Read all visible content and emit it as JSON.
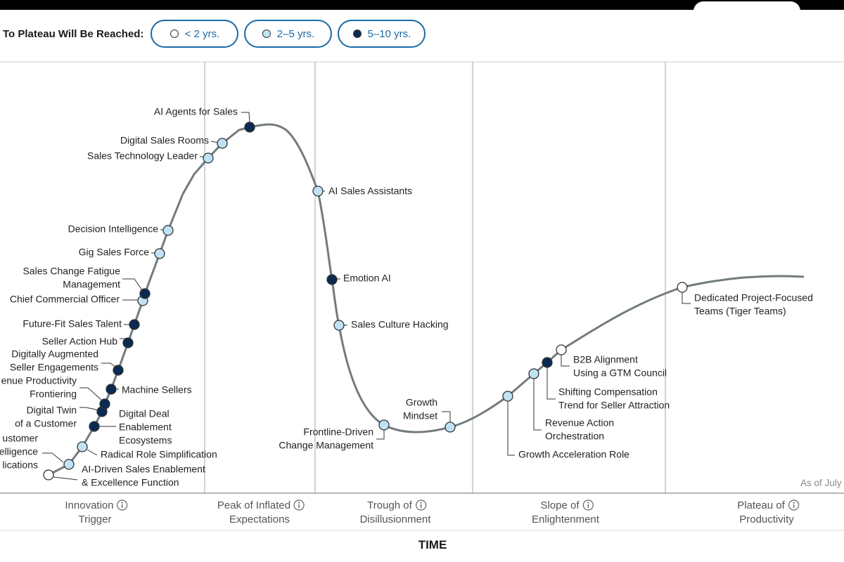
{
  "legend": {
    "title": "To Plateau Will Be Reached:",
    "items": [
      {
        "label": "< 2 yrs.",
        "color": "#ffffff"
      },
      {
        "label": "2–5 yrs.",
        "color": "#bfe3f5"
      },
      {
        "label": "5–10 yrs.",
        "color": "#0b2a52"
      }
    ]
  },
  "chart_data": {
    "type": "line",
    "xlabel": "TIME",
    "as_of": "As of July",
    "phases": [
      {
        "line1": "Innovation",
        "line2": "Trigger"
      },
      {
        "line1": "Peak of Inflated",
        "line2": "Expectations"
      },
      {
        "line1": "Trough of",
        "line2": "Disillusionment"
      },
      {
        "line1": "Slope of",
        "line2": "Enlightenment"
      },
      {
        "line1": "Plateau of",
        "line2": "Productivity"
      }
    ],
    "series": [
      {
        "name": "< 2 yrs.",
        "color": "#ffffff"
      },
      {
        "name": "2–5 yrs.",
        "color": "#bfe3f5"
      },
      {
        "name": "5–10 yrs.",
        "color": "#0b2a52"
      }
    ],
    "points": [
      {
        "lines": [
          "AI-Driven Sales Enablement",
          "& Excellence Function"
        ],
        "category": 0
      },
      {
        "lines": [
          "ustomer",
          "elligence",
          "lications"
        ],
        "category": 1
      },
      {
        "lines": [
          "Radical Role Simplification"
        ],
        "category": 1
      },
      {
        "lines": [
          "Digital Deal",
          "Enablement",
          "Ecosystems"
        ],
        "category": 2
      },
      {
        "lines": [
          "Digital Twin",
          "of a Customer"
        ],
        "category": 2
      },
      {
        "lines": [
          "enue Productivity",
          "Frontiering"
        ],
        "category": 2
      },
      {
        "lines": [
          "Machine Sellers"
        ],
        "category": 2
      },
      {
        "lines": [
          "Digitally Augmented",
          "Seller Engagements"
        ],
        "category": 2
      },
      {
        "lines": [
          "Seller Action Hub"
        ],
        "category": 2
      },
      {
        "lines": [
          "Future-Fit Sales Talent"
        ],
        "category": 2
      },
      {
        "lines": [
          "Chief Commercial Officer"
        ],
        "category": 1
      },
      {
        "lines": [
          "Sales Change Fatigue",
          "Management"
        ],
        "category": 2
      },
      {
        "lines": [
          "Gig Sales Force"
        ],
        "category": 1
      },
      {
        "lines": [
          "Decision Intelligence"
        ],
        "category": 1
      },
      {
        "lines": [
          "Sales Technology Leader"
        ],
        "category": 1
      },
      {
        "lines": [
          "Digital Sales Rooms"
        ],
        "category": 1
      },
      {
        "lines": [
          "AI Agents for Sales"
        ],
        "category": 2
      },
      {
        "lines": [
          "AI Sales Assistants"
        ],
        "category": 1
      },
      {
        "lines": [
          "Emotion AI"
        ],
        "category": 2
      },
      {
        "lines": [
          "Sales Culture Hacking"
        ],
        "category": 1
      },
      {
        "lines": [
          "Frontline-Driven",
          "Change Management"
        ],
        "category": 1
      },
      {
        "lines": [
          "Growth",
          "Mindset"
        ],
        "category": 1
      },
      {
        "lines": [
          "Growth Acceleration Role"
        ],
        "category": 1
      },
      {
        "lines": [
          "Revenue Action",
          "Orchestration"
        ],
        "category": 1
      },
      {
        "lines": [
          "Shifting Compensation",
          "Trend for Seller Attraction"
        ],
        "category": 2
      },
      {
        "lines": [
          "B2B Alignment",
          "Using a GTM Council"
        ],
        "category": 0
      },
      {
        "lines": [
          "Dedicated Project-Focused",
          "Teams (Tiger Teams)"
        ],
        "category": 0
      }
    ]
  }
}
